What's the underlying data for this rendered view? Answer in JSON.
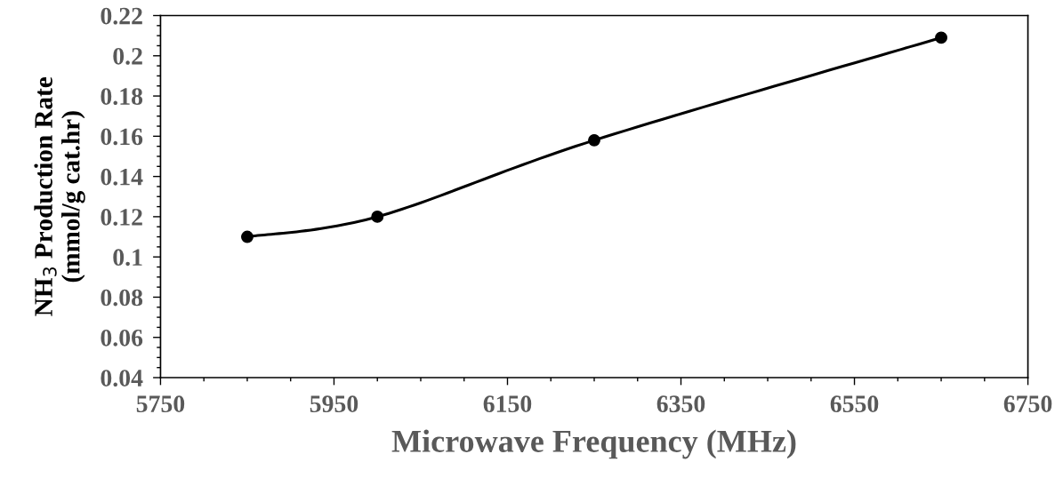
{
  "chart_data": {
    "type": "line",
    "xlabel": "Microwave Frequency (MHz)",
    "ylabel": "NH$_{3}$ Production Rate\n(mmol/g cat.hr)",
    "x": [
      5850,
      6000,
      6250,
      6650
    ],
    "series": [
      {
        "color": "#000000",
        "values": [
          0.11,
          0.12,
          0.158,
          0.209
        ]
      }
    ],
    "xlim": [
      5750,
      6750
    ],
    "xticks": [
      5750,
      5950,
      6150,
      6350,
      6550,
      6750
    ],
    "ylim": [
      0.04,
      0.22
    ],
    "yticks": [
      0.04,
      0.06,
      0.08,
      0.1,
      0.12,
      0.14,
      0.16,
      0.18,
      0.2,
      0.22
    ],
    "grid": false,
    "legend": false,
    "marker": "circle",
    "line_style": "solid"
  }
}
